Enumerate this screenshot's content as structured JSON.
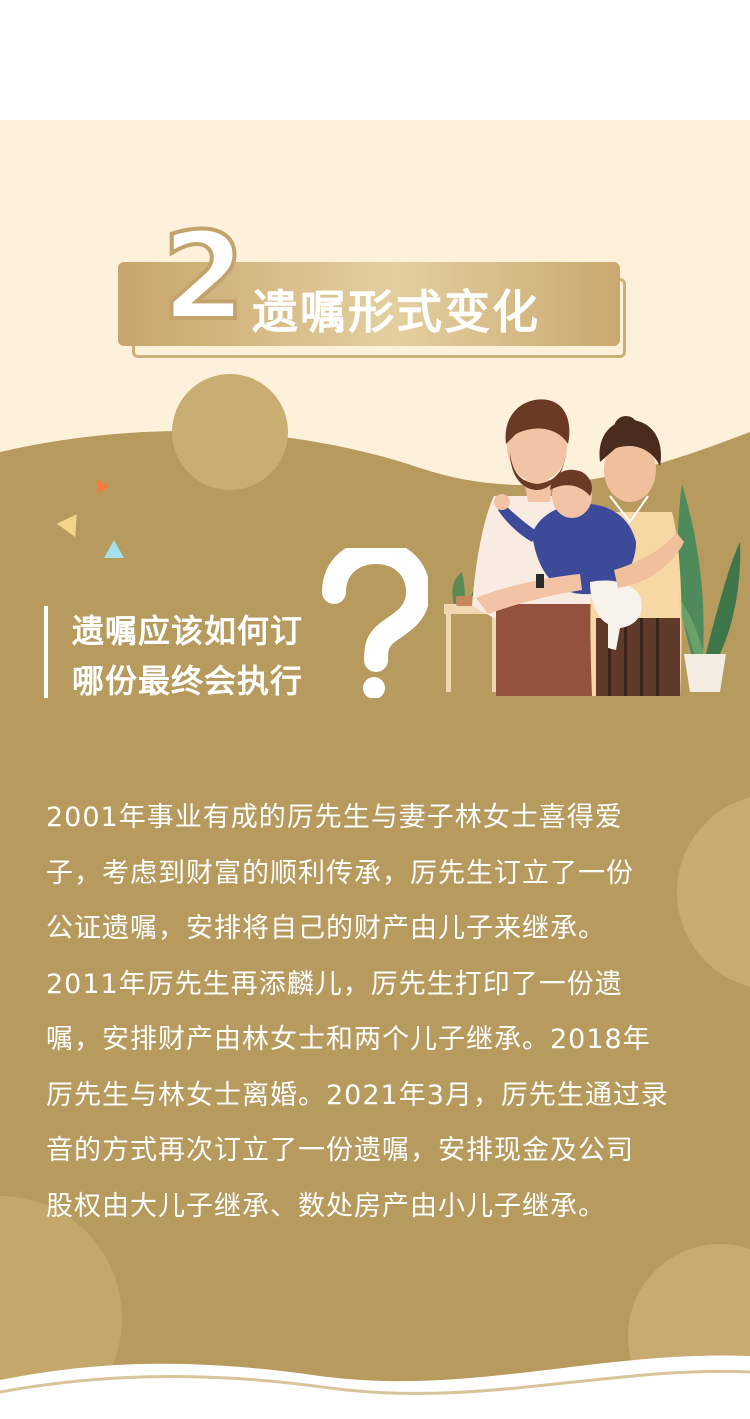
{
  "section": {
    "number": "2",
    "title": "遗嘱形式变化"
  },
  "question": {
    "line1": "遗嘱应该如何订",
    "line2": "哪份最终会执行"
  },
  "story": {
    "lines": [
      "2001年事业有成的厉先生与妻子林女士喜得爱",
      "子，考虑到财富的顺利传承，厉先生订立了一份",
      "公证遗嘱，安排将自己的财产由儿子来继承。",
      "2011年厉先生再添麟儿，厉先生打印了一份遗",
      "嘱，安排财产由林女士和两个儿子继承。2018年",
      "厉先生与林女士离婚。2021年3月，厉先生通过录",
      "音的方式再次订立了一份遗嘱，安排现金及公司",
      "股权由大儿子继承、数处房产由小儿子继承。"
    ]
  },
  "colors": {
    "cream": "#fdf1dc",
    "gold": "#b69a5e",
    "gold_light": "#c3a76b",
    "text": "#ffffff"
  }
}
